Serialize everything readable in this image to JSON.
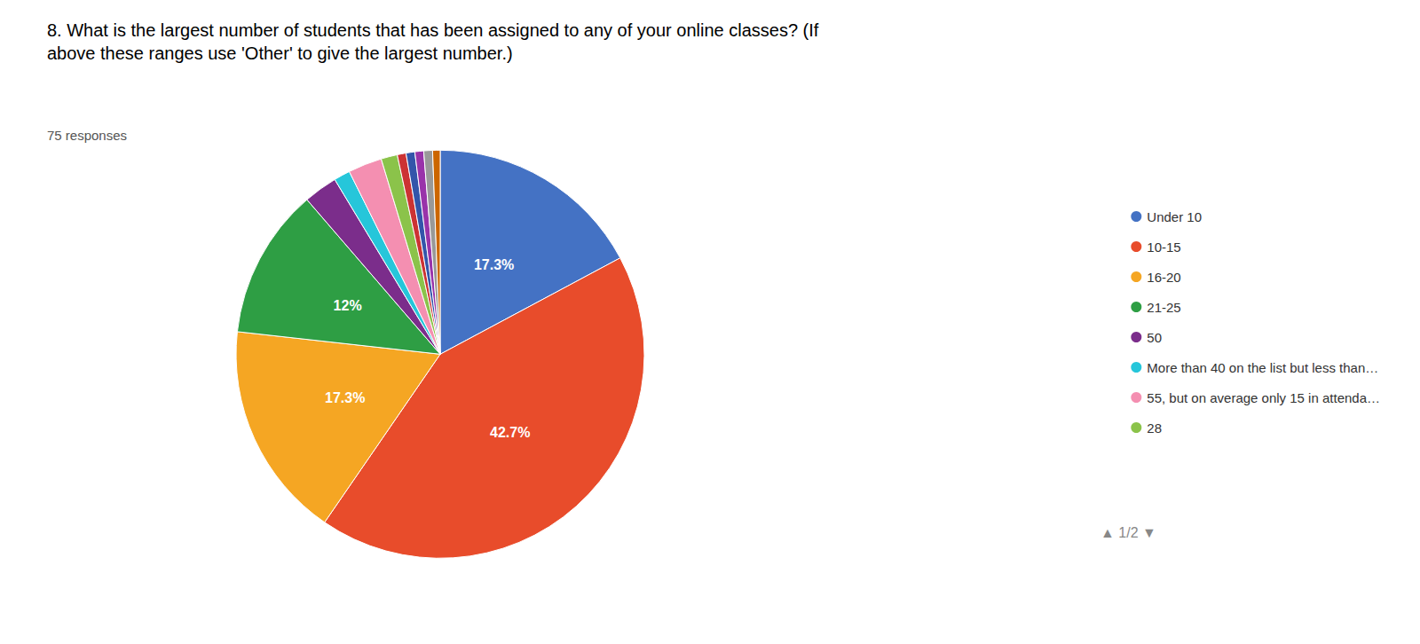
{
  "chart_data": {
    "type": "pie",
    "title": "8. What is the largest number of students that has been assigned to any of your online classes? (If\nabove these ranges use 'Other' to give the largest number.)",
    "subtitle": "75 responses",
    "categories": [
      "Under 10",
      "10-15",
      "16-20",
      "21-25",
      "50",
      "More than 40 on the list but less than…",
      "55, but on average only 15 in attenda…",
      "28",
      null,
      null,
      null,
      null,
      null
    ],
    "values": [
      17.3,
      42.7,
      17.3,
      12.0,
      2.7,
      1.3,
      2.7,
      1.3,
      0.7,
      0.7,
      0.7,
      0.7,
      0.6
    ],
    "value_labels": [
      "17.3%",
      "42.7%",
      "17.3%",
      "12%",
      null,
      null,
      null,
      null,
      null,
      null,
      null,
      null,
      null
    ],
    "colors": [
      "#4472C4",
      "#E84C2B",
      "#F5A623",
      "#2E9E44",
      "#7B2D8B",
      "#26C6DA",
      "#F48FB1",
      "#8BC34A",
      "#CC3333",
      "#3355AA",
      "#9933AA",
      "#999999",
      "#CC6600"
    ],
    "data_labels": true,
    "legend": "right",
    "annotations": [
      "▲ 1/2 ▼"
    ]
  }
}
